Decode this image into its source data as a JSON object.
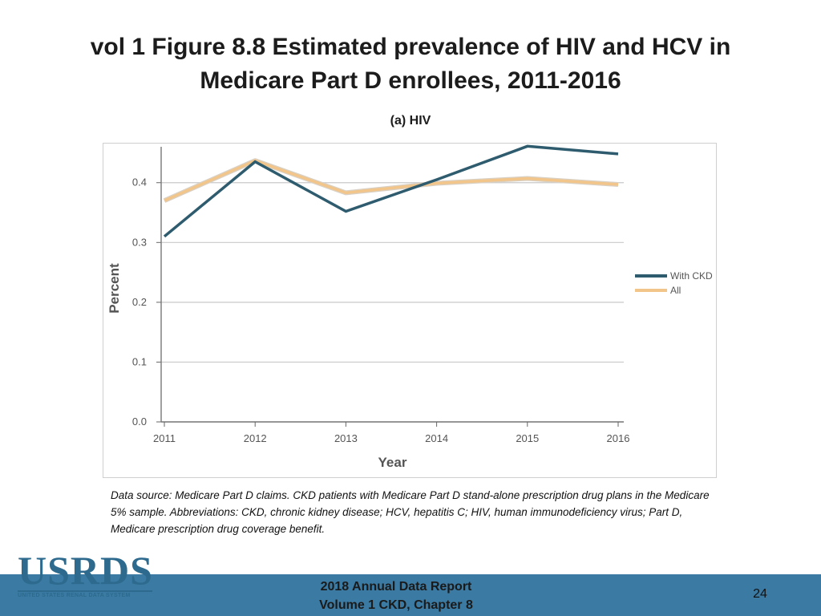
{
  "slide": {
    "title": "vol 1 Figure 8.8 Estimated prevalence of HIV and HCV in Medicare Part D enrollees, 2011-2016",
    "subtitle": "(a) HIV",
    "source_note": "Data source: Medicare Part D claims. CKD patients with Medicare Part D stand-alone prescription drug plans in the Medicare 5% sample. Abbreviations: CKD, chronic kidney disease; HCV, hepatitis C; HIV, human immunodeficiency virus; Part D, Medicare prescription drug coverage benefit."
  },
  "logo": {
    "word": "USRDS",
    "tagline": "UNITED STATES RENAL DATA SYSTEM"
  },
  "footer": {
    "line1": "2018 Annual Data Report",
    "line2": "Volume 1 CKD, Chapter 8",
    "page_number": "24",
    "band_color": "#3a7aa3"
  },
  "chart_data": {
    "type": "line",
    "title": "(a) HIV",
    "xlabel": "Year",
    "ylabel": "Percent",
    "x": [
      "2011",
      "2012",
      "2013",
      "2014",
      "2015",
      "2016"
    ],
    "ylim": [
      0,
      0.46
    ],
    "yticks": [
      "0.0",
      "0.1",
      "0.2",
      "0.3",
      "0.4"
    ],
    "ytick_values": [
      0,
      0.1,
      0.2,
      0.3,
      0.4
    ],
    "grid": true,
    "legend_position": "right",
    "series": [
      {
        "name": "With CKD",
        "color": "#2e5c6e",
        "values": [
          0.31,
          0.435,
          0.352,
          0.405,
          0.461,
          0.448
        ]
      },
      {
        "name": "All",
        "color": "#f2c58a",
        "values": [
          0.37,
          0.437,
          0.383,
          0.399,
          0.407,
          0.397
        ]
      }
    ]
  }
}
